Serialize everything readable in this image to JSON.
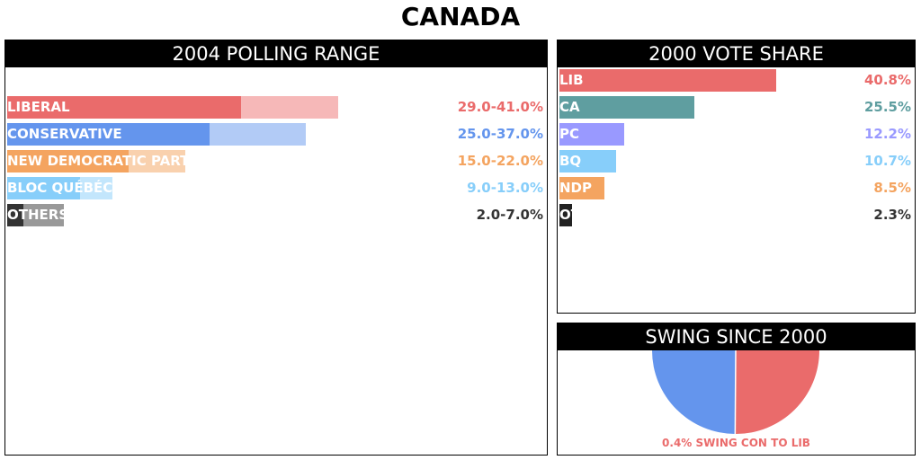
{
  "page_title": "CANADA",
  "colors": {
    "liberal": "#ea6b6b",
    "conservative": "#6495ed",
    "ndp": "#f4a460",
    "bq": "#87cefa",
    "others": "#333333",
    "ca": "#5f9ea0",
    "pc": "#9999ff",
    "oth": "#222222"
  },
  "chart_data": [
    {
      "type": "bar",
      "title": "2004 POLLING RANGE",
      "xlim": [
        0,
        100
      ],
      "series": [
        {
          "name": "LIBERAL",
          "low": 29.0,
          "high": 41.0,
          "label": "29.0-41.0%",
          "color": "#ea6b6b",
          "light": "#f6b8b8",
          "text_color": "#ea6b6b"
        },
        {
          "name": "CONSERVATIVE",
          "low": 25.0,
          "high": 37.0,
          "label": "25.0-37.0%",
          "color": "#6495ed",
          "light": "#b2cbf6",
          "text_color": "#6495ed"
        },
        {
          "name": "NEW DEMOCRATIC PARTY",
          "low": 15.0,
          "high": 22.0,
          "label": "15.0-22.0%",
          "color": "#f4a460",
          "light": "#f9d1ae",
          "text_color": "#f4a460"
        },
        {
          "name": "BLOC QUÉBÉCOIS",
          "low": 9.0,
          "high": 13.0,
          "label": "9.0-13.0%",
          "color": "#87cefa",
          "light": "#c3e6fc",
          "text_color": "#87cefa"
        },
        {
          "name": "OTHERS",
          "low": 2.0,
          "high": 7.0,
          "label": "2.0-7.0%",
          "color": "#333333",
          "light": "#999999",
          "text_color": "#333333"
        }
      ]
    },
    {
      "type": "bar",
      "title": "2000 VOTE SHARE",
      "xlim": [
        0,
        60
      ],
      "series": [
        {
          "name": "LIB",
          "value": 40.8,
          "label": "40.8%",
          "color": "#ea6b6b"
        },
        {
          "name": "CA",
          "value": 25.5,
          "label": "25.5%",
          "color": "#5f9ea0"
        },
        {
          "name": "PC",
          "value": 12.2,
          "label": "12.2%",
          "color": "#9999ff"
        },
        {
          "name": "BQ",
          "value": 10.7,
          "label": "10.7%",
          "color": "#87cefa"
        },
        {
          "name": "NDP",
          "value": 8.5,
          "label": "8.5%",
          "color": "#f4a460"
        },
        {
          "name": "OTH",
          "value": 2.3,
          "label": "2.3%",
          "color": "#222222"
        }
      ]
    },
    {
      "type": "pie",
      "title": "SWING SINCE 2000",
      "swing": 0.4,
      "from": "CON",
      "to": "LIB",
      "caption": "0.4% SWING CON TO LIB",
      "caption_color": "#ea6b6b",
      "left_color": "#6495ed",
      "right_color": "#ea6b6b"
    }
  ]
}
